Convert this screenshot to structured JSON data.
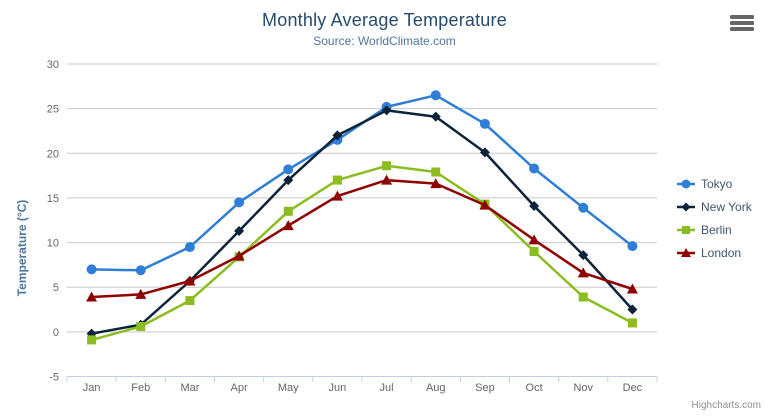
{
  "chart_data": {
    "type": "line",
    "title": "Monthly Average Temperature",
    "subtitle": "Source: WorldClimate.com",
    "xlabel": "",
    "ylabel": "Temperature (°C)",
    "ylim": [
      -5,
      30
    ],
    "ytick_interval": 5,
    "grid": true,
    "legend_position": "right",
    "categories": [
      "Jan",
      "Feb",
      "Mar",
      "Apr",
      "May",
      "Jun",
      "Jul",
      "Aug",
      "Sep",
      "Oct",
      "Nov",
      "Dec"
    ],
    "series": [
      {
        "name": "Tokyo",
        "color": "#2f7ed8",
        "marker": "circle",
        "values": [
          7.0,
          6.9,
          9.5,
          14.5,
          18.2,
          21.5,
          25.2,
          26.5,
          23.3,
          18.3,
          13.9,
          9.6
        ]
      },
      {
        "name": "New York",
        "color": "#0d233a",
        "marker": "diamond",
        "values": [
          -0.2,
          0.8,
          5.7,
          11.3,
          17.0,
          22.0,
          24.8,
          24.1,
          20.1,
          14.1,
          8.6,
          2.5
        ]
      },
      {
        "name": "Berlin",
        "color": "#8bbc21",
        "marker": "square",
        "values": [
          -0.9,
          0.6,
          3.5,
          8.4,
          13.5,
          17.0,
          18.6,
          17.9,
          14.3,
          9.0,
          3.9,
          1.0
        ]
      },
      {
        "name": "London",
        "color": "#910000",
        "marker": "triangle",
        "values": [
          3.9,
          4.2,
          5.7,
          8.5,
          11.9,
          15.2,
          17.0,
          16.6,
          14.2,
          10.3,
          6.6,
          4.8
        ]
      }
    ]
  },
  "credits": "Highcharts.com",
  "icons": {
    "export_menu": "hamburger-icon"
  },
  "colors": {
    "title": "#274b6d",
    "subtitle": "#4d759e",
    "axis_title": "#4d759e",
    "axis_label": "#666666",
    "grid": "#c8c8c8",
    "axis_line": "#c0d0e0",
    "legend_text": "#3e576f",
    "credits": "#909090",
    "background": "#ffffff",
    "export_icon": "#666666"
  }
}
